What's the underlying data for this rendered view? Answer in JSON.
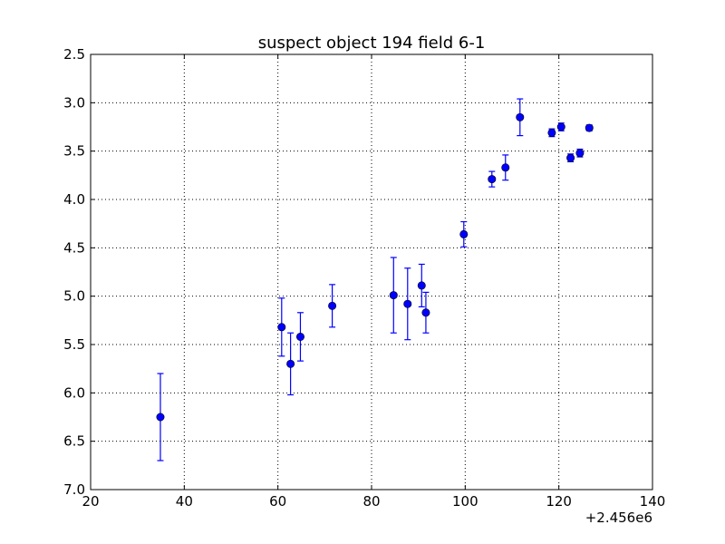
{
  "chart_data": {
    "type": "scatter",
    "title": "suspect object 194 field 6-1",
    "xlabel": "",
    "ylabel": "",
    "x_offset_label": "+2.456e6",
    "xlim": [
      20,
      140
    ],
    "ylim": [
      2.5,
      7.0
    ],
    "y_inverted": true,
    "grid": true,
    "x_ticks": [
      "20",
      "40",
      "60",
      "80",
      "100",
      "120",
      "140"
    ],
    "y_ticks": [
      "2.5",
      "3.0",
      "3.5",
      "4.0",
      "4.5",
      "5.0",
      "5.5",
      "6.0",
      "6.5",
      "7.0"
    ],
    "series": [
      {
        "marker": "circle",
        "color": "#0000ff",
        "points": [
          {
            "x": 34.9,
            "y": 6.25,
            "err": 0.45
          },
          {
            "x": 60.8,
            "y": 5.32,
            "err": 0.3
          },
          {
            "x": 62.7,
            "y": 5.7,
            "err": 0.32
          },
          {
            "x": 64.8,
            "y": 5.42,
            "err": 0.25
          },
          {
            "x": 71.6,
            "y": 5.1,
            "err": 0.22
          },
          {
            "x": 84.7,
            "y": 4.99,
            "err": 0.39
          },
          {
            "x": 87.7,
            "y": 5.08,
            "err": 0.37
          },
          {
            "x": 90.7,
            "y": 4.89,
            "err": 0.22
          },
          {
            "x": 91.6,
            "y": 5.17,
            "err": 0.21
          },
          {
            "x": 99.7,
            "y": 4.36,
            "err": 0.13
          },
          {
            "x": 105.7,
            "y": 3.79,
            "err": 0.08
          },
          {
            "x": 108.6,
            "y": 3.67,
            "err": 0.13
          },
          {
            "x": 111.7,
            "y": 3.15,
            "err": 0.19
          },
          {
            "x": 118.5,
            "y": 3.31,
            "err": 0.04
          },
          {
            "x": 120.5,
            "y": 3.25,
            "err": 0.04
          },
          {
            "x": 122.5,
            "y": 3.57,
            "err": 0.04
          },
          {
            "x": 124.5,
            "y": 3.52,
            "err": 0.04
          },
          {
            "x": 126.5,
            "y": 3.26,
            "err": 0.03
          }
        ]
      }
    ]
  },
  "colors": {
    "marker_fill": "#0000ff",
    "marker_edge": "#000000",
    "errorbar": "#0000ff",
    "grid": "#000000",
    "axes": "#000000"
  }
}
